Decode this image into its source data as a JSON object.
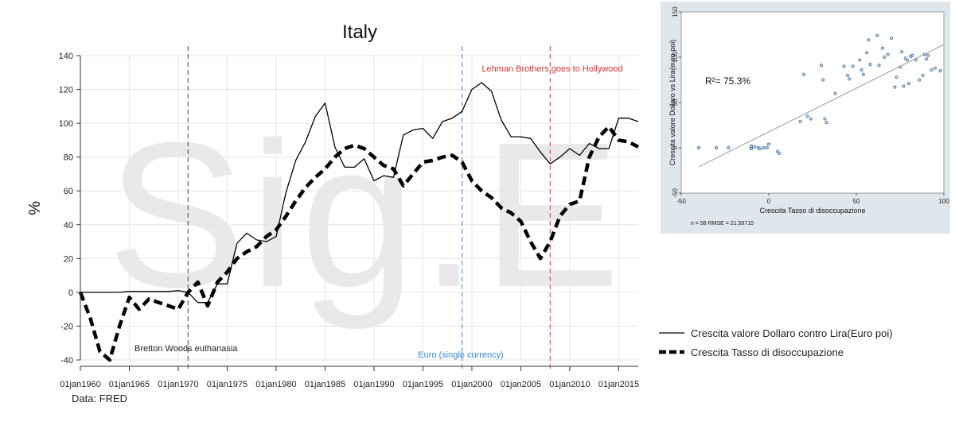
{
  "chart_data": [
    {
      "type": "line",
      "title": "Italy",
      "xlabel": "",
      "ylabel": "%",
      "source_note": "Data: FRED",
      "watermark": "Sig.E",
      "ylim": [
        -40,
        140
      ],
      "y_ticks": [
        -40,
        -20,
        0,
        20,
        40,
        60,
        80,
        100,
        120,
        140
      ],
      "xlim": [
        1960,
        2017
      ],
      "x_ticks": [
        {
          "x": 1960,
          "label": "01jan1960"
        },
        {
          "x": 1965,
          "label": "01jan1965"
        },
        {
          "x": 1970,
          "label": "01jan1970"
        },
        {
          "x": 1975,
          "label": "01jan1975"
        },
        {
          "x": 1980,
          "label": "01jan1980"
        },
        {
          "x": 1985,
          "label": "01jan1985"
        },
        {
          "x": 1990,
          "label": "01jan1990"
        },
        {
          "x": 1995,
          "label": "01jan1995"
        },
        {
          "x": 2000,
          "label": "01jan2000"
        },
        {
          "x": 2005,
          "label": "01jan2005"
        },
        {
          "x": 2010,
          "label": "01jan2010"
        },
        {
          "x": 2015,
          "label": "01jan2015"
        }
      ],
      "grid": true,
      "legend_position": "right",
      "series": [
        {
          "name": "Crescita valore Dollaro contro Lira(Euro poi)",
          "style": "solid",
          "color": "#000000",
          "x": [
            1960,
            1961,
            1962,
            1963,
            1964,
            1965,
            1966,
            1967,
            1968,
            1969,
            1970,
            1971,
            1972,
            1973,
            1974,
            1975,
            1976,
            1977,
            1978,
            1979,
            1980,
            1981,
            1982,
            1983,
            1984,
            1985,
            1986,
            1987,
            1988,
            1989,
            1990,
            1991,
            1992,
            1993,
            1994,
            1995,
            1996,
            1997,
            1998,
            1999,
            2000,
            2001,
            2002,
            2003,
            2004,
            2005,
            2006,
            2007,
            2008,
            2009,
            2010,
            2011,
            2012,
            2013,
            2014,
            2015,
            2016,
            2017
          ],
          "y": [
            0,
            0,
            0,
            0,
            0,
            0.5,
            0.5,
            0.5,
            0.5,
            0.5,
            1,
            0,
            -6,
            -6,
            5,
            5,
            29,
            35,
            31,
            30,
            33,
            59,
            78,
            89,
            104,
            112,
            86,
            74,
            74,
            79,
            66,
            69,
            68,
            93,
            96,
            97,
            91,
            101,
            103,
            107,
            120,
            124,
            119,
            102,
            92,
            92,
            91,
            83,
            76,
            80,
            85,
            81,
            88,
            85,
            85,
            103,
            103,
            101
          ]
        },
        {
          "name": "Crescita Tasso di disoccupazione",
          "style": "dashed",
          "color": "#000000",
          "x": [
            1960,
            1961,
            1962,
            1963,
            1964,
            1965,
            1966,
            1967,
            1968,
            1969,
            1970,
            1971,
            1972,
            1973,
            1974,
            1975,
            1976,
            1977,
            1978,
            1979,
            1980,
            1981,
            1982,
            1983,
            1984,
            1985,
            1986,
            1987,
            1988,
            1989,
            1990,
            1991,
            1992,
            1993,
            1994,
            1995,
            1996,
            1997,
            1998,
            1999,
            2000,
            2001,
            2002,
            2003,
            2004,
            2005,
            2006,
            2007,
            2008,
            2009,
            2010,
            2011,
            2012,
            2013,
            2014,
            2015,
            2016,
            2017
          ],
          "y": [
            0,
            -15,
            -35,
            -40,
            -20,
            -3,
            -10,
            -4,
            -6,
            -8,
            -10,
            0,
            6,
            -8,
            6,
            12,
            20,
            24,
            27,
            33,
            37,
            45,
            54,
            62,
            68,
            73,
            80,
            85,
            87,
            85,
            80,
            75,
            73,
            63,
            70,
            77,
            78,
            80,
            81,
            77,
            66,
            60,
            56,
            50,
            47,
            42,
            30,
            20,
            30,
            45,
            52,
            54,
            80,
            92,
            98,
            90,
            89,
            86
          ]
        }
      ],
      "annotations": [
        {
          "x": 1971,
          "color": "#444444",
          "text": "Bretton Woods euthanasia"
        },
        {
          "x": 1999,
          "color": "#3388dd",
          "text": "Euro (single  currency)"
        },
        {
          "x": 2008,
          "color": "#dd3333",
          "text": "Lehman Brothers  goes to Hollywood"
        }
      ]
    },
    {
      "type": "scatter",
      "xlabel": "Crescita Tasso di disoccupazione",
      "ylabel": "Crescita valore Dollaro vs Lira(euro poi)",
      "xlim": [
        -50,
        100
      ],
      "ylim": [
        -50,
        150
      ],
      "x_ticks": [
        -50,
        0,
        50,
        100
      ],
      "y_ticks": [
        -50,
        0,
        50,
        100,
        150
      ],
      "r2_label": "R²= 75.3%",
      "footer": "n = 58   RMSE =  21.59715",
      "fit_line": {
        "x": [
          -40,
          100
        ],
        "y": [
          -21,
          114
        ]
      },
      "points": [
        [
          -40,
          0
        ],
        [
          -30,
          0
        ],
        [
          -23,
          0
        ],
        [
          -10,
          0
        ],
        [
          -10,
          2
        ],
        [
          -10,
          -1
        ],
        [
          -8,
          1
        ],
        [
          -6,
          0
        ],
        [
          -5,
          -1
        ],
        [
          -3,
          0
        ],
        [
          -1,
          0
        ],
        [
          0,
          4
        ],
        [
          5,
          -4
        ],
        [
          6,
          -6
        ],
        [
          18,
          29
        ],
        [
          20,
          81
        ],
        [
          22,
          35
        ],
        [
          24,
          32
        ],
        [
          30,
          91
        ],
        [
          31,
          75
        ],
        [
          32,
          32
        ],
        [
          33,
          28
        ],
        [
          38,
          60
        ],
        [
          43,
          90
        ],
        [
          45,
          80
        ],
        [
          46,
          76
        ],
        [
          48,
          90
        ],
        [
          52,
          97
        ],
        [
          53,
          86
        ],
        [
          54,
          81
        ],
        [
          56,
          105
        ],
        [
          57,
          119
        ],
        [
          58,
          92
        ],
        [
          62,
          124
        ],
        [
          63,
          91
        ],
        [
          65,
          110
        ],
        [
          66,
          100
        ],
        [
          68,
          103
        ],
        [
          70,
          121
        ],
        [
          72,
          67
        ],
        [
          73,
          78
        ],
        [
          75,
          89
        ],
        [
          76,
          106
        ],
        [
          77,
          68
        ],
        [
          78,
          99
        ],
        [
          79,
          97
        ],
        [
          80,
          71
        ],
        [
          81,
          101
        ],
        [
          82,
          102
        ],
        [
          84,
          97
        ],
        [
          86,
          75
        ],
        [
          88,
          80
        ],
        [
          89,
          103
        ],
        [
          90,
          98
        ],
        [
          91,
          102
        ],
        [
          93,
          86
        ],
        [
          95,
          88
        ],
        [
          98,
          85
        ]
      ]
    }
  ]
}
